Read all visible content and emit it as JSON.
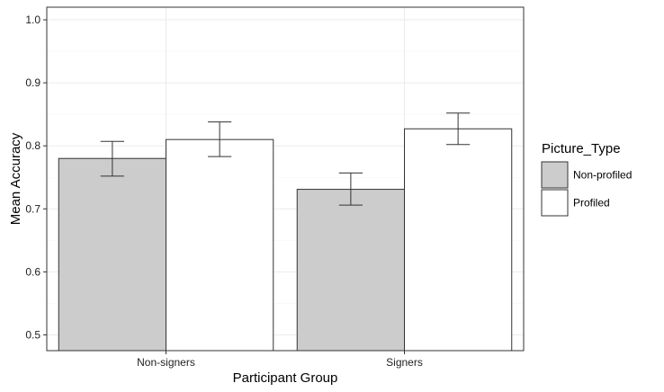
{
  "chart_data": {
    "type": "bar",
    "title": "",
    "xlabel": "Participant Group",
    "ylabel": "Mean Accuracy",
    "categories": [
      "Non-signers",
      "Signers"
    ],
    "series": [
      {
        "name": "Non-profiled",
        "values": [
          0.78,
          0.731
        ],
        "error_low": [
          0.752,
          0.706
        ],
        "error_high": [
          0.807,
          0.757
        ],
        "color": "#cccccc"
      },
      {
        "name": "Profiled",
        "values": [
          0.81,
          0.827
        ],
        "error_low": [
          0.783,
          0.802
        ],
        "error_high": [
          0.838,
          0.852
        ],
        "color": "#ffffff"
      }
    ],
    "ylim": [
      0.475,
      1.02
    ],
    "yticks": [
      0.5,
      0.6,
      0.7,
      0.8,
      0.9,
      1.0
    ],
    "ytick_labels": [
      "0.5",
      "0.6",
      "0.7",
      "0.8",
      "0.9",
      "1.0"
    ],
    "legend_title": "Picture_Type",
    "legend_position": "right",
    "grid": true,
    "colors": {
      "grid_major": "#ebebeb",
      "grid_minor": "#f5f5f5",
      "panel_border": "#333333",
      "bar_outline": "#333333"
    }
  }
}
